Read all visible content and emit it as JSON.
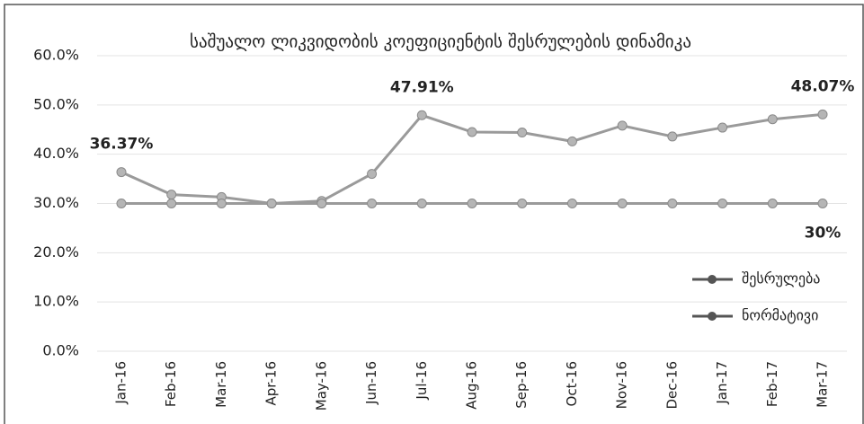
{
  "chart_data": {
    "type": "line",
    "title": "საშუალო ლიკვიდობის კოეფიციენტის შესრულების დინამიკა",
    "categories": [
      "Jan-16",
      "Feb-16",
      "Mar-16",
      "Apr-16",
      "May-16",
      "Jun-16",
      "Jul-16",
      "Aug-16",
      "Sep-16",
      "Oct-16",
      "Nov-16",
      "Dec-16",
      "Jan-17",
      "Feb-17",
      "Mar-17"
    ],
    "series": [
      {
        "name": "შესრულება",
        "color": "#9a9a9a",
        "values": [
          36.37,
          31.8,
          31.3,
          30.0,
          30.5,
          36.0,
          47.91,
          44.5,
          44.4,
          42.6,
          45.8,
          43.6,
          45.4,
          47.1,
          48.07
        ],
        "value_labels": [
          "36.37%",
          null,
          null,
          null,
          null,
          null,
          "47.91%",
          null,
          null,
          null,
          null,
          null,
          null,
          null,
          "48.07%"
        ]
      },
      {
        "name": "ნორმატივი",
        "color": "#9a9a9a",
        "values": [
          30,
          30,
          30,
          30,
          30,
          30,
          30,
          30,
          30,
          30,
          30,
          30,
          30,
          30,
          30
        ],
        "value_labels": [
          null,
          null,
          null,
          null,
          null,
          null,
          null,
          null,
          null,
          null,
          null,
          null,
          null,
          null,
          "30%"
        ]
      }
    ],
    "ylim": [
      0,
      60
    ],
    "yticks": [
      {
        "value": 0,
        "label": "0.0%"
      },
      {
        "value": 10,
        "label": "10.0%"
      },
      {
        "value": 20,
        "label": "20.0%"
      },
      {
        "value": 30,
        "label": "30.0%"
      },
      {
        "value": 40,
        "label": "40.0%"
      },
      {
        "value": 50,
        "label": "50.0%"
      },
      {
        "value": 60,
        "label": "60.0%"
      }
    ],
    "grid": true,
    "legend": "right"
  }
}
